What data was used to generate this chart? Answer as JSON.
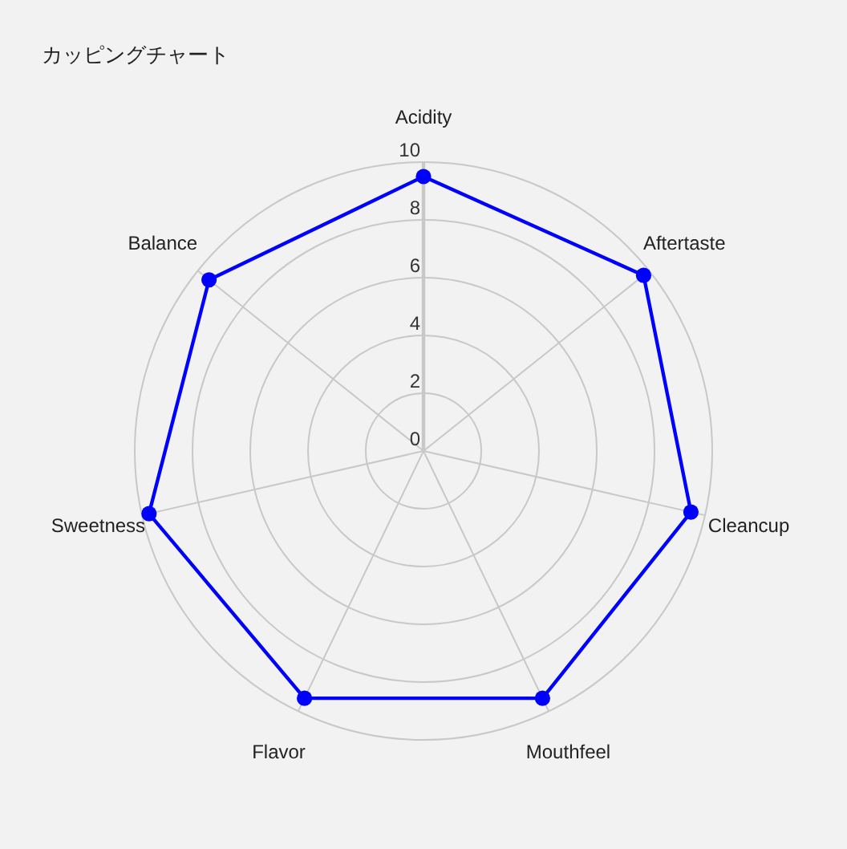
{
  "chart_data": {
    "type": "radar",
    "title": "カッピングチャート",
    "categories": [
      "Acidity",
      "Aftertaste",
      "Cleancup",
      "Mouthfeel",
      "Flavor",
      "Sweetness",
      "Balance"
    ],
    "series": [
      {
        "color": "#0000ff",
        "values": [
          9.5,
          9.75,
          9.5,
          9.5,
          9.5,
          9.75,
          9.5
        ]
      }
    ],
    "ylim": [
      0,
      10
    ],
    "yticks": [
      0,
      2,
      4,
      6,
      8,
      10
    ],
    "grid": true,
    "marker": "circle",
    "line_style": "solid"
  }
}
